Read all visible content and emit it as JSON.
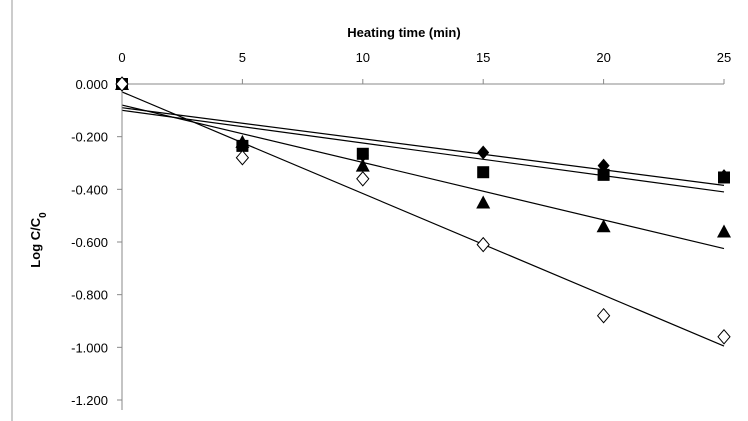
{
  "chart_data": {
    "type": "scatter",
    "title": "",
    "xlabel": "Heating time (min)",
    "ylabel": "Log C/C",
    "ylabel_subscript": "0",
    "x_axis_position": "top",
    "xlim": [
      0,
      25
    ],
    "ylim": [
      -1.2,
      0
    ],
    "x_ticks": [
      0,
      5,
      10,
      15,
      20,
      25
    ],
    "x_tick_labels": [
      "0",
      "5",
      "10",
      "15",
      "20",
      "25"
    ],
    "y_ticks": [
      0,
      -0.2,
      -0.4,
      -0.6,
      -0.8,
      -1.0,
      -1.2
    ],
    "y_tick_labels": [
      "0.000",
      "-0.200",
      "-0.400",
      "-0.600",
      "-0.800",
      "-1.000",
      "-1.200"
    ],
    "grid": false,
    "legend": false,
    "series": [
      {
        "marker": "filled-diamond",
        "color": "#000000",
        "x": [
          0,
          5,
          10,
          15,
          20,
          25
        ],
        "y": [
          0.0,
          -0.23,
          -0.27,
          -0.26,
          -0.31,
          -0.35
        ],
        "trendline": [
          [
            0,
            -0.09
          ],
          [
            25,
            -0.385
          ]
        ]
      },
      {
        "marker": "filled-square",
        "color": "#000000",
        "x": [
          0,
          5,
          10,
          15,
          20,
          25
        ],
        "y": [
          0.0,
          -0.235,
          -0.265,
          -0.335,
          -0.345,
          -0.355
        ],
        "trendline": [
          [
            0,
            -0.1
          ],
          [
            25,
            -0.41
          ]
        ]
      },
      {
        "marker": "filled-triangle",
        "color": "#000000",
        "x": [
          0,
          5,
          10,
          15,
          20,
          25
        ],
        "y": [
          0.0,
          -0.22,
          -0.31,
          -0.45,
          -0.54,
          -0.56
        ],
        "trendline": [
          [
            0,
            -0.08
          ],
          [
            25,
            -0.625
          ]
        ]
      },
      {
        "marker": "open-diamond",
        "color": "#000000",
        "x": [
          0,
          5,
          10,
          15,
          20,
          25
        ],
        "y": [
          0.0,
          -0.28,
          -0.36,
          -0.61,
          -0.88,
          -0.96
        ],
        "trendline": [
          [
            0,
            -0.03
          ],
          [
            25,
            -0.995
          ]
        ]
      }
    ]
  }
}
